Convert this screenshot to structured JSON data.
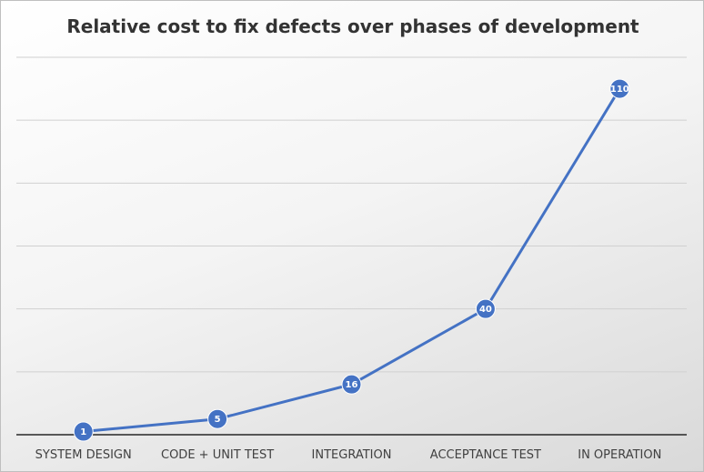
{
  "chart_data": {
    "type": "line",
    "title": "Relative cost to fix defects over phases of development",
    "categories": [
      "SYSTEM DESIGN",
      "CODE + UNIT TEST",
      "INTEGRATION",
      "ACCEPTANCE TEST",
      "IN OPERATION"
    ],
    "values": [
      1,
      5,
      16,
      40,
      110
    ],
    "data_labels": [
      "1",
      "5",
      "16",
      "40",
      "110"
    ],
    "xlabel": "",
    "ylabel": "",
    "ylim": [
      0,
      120
    ],
    "y_gridline_step": 20,
    "y_tick_labels_shown": false,
    "grid": true,
    "legend": "none",
    "color": "#4472c4"
  }
}
